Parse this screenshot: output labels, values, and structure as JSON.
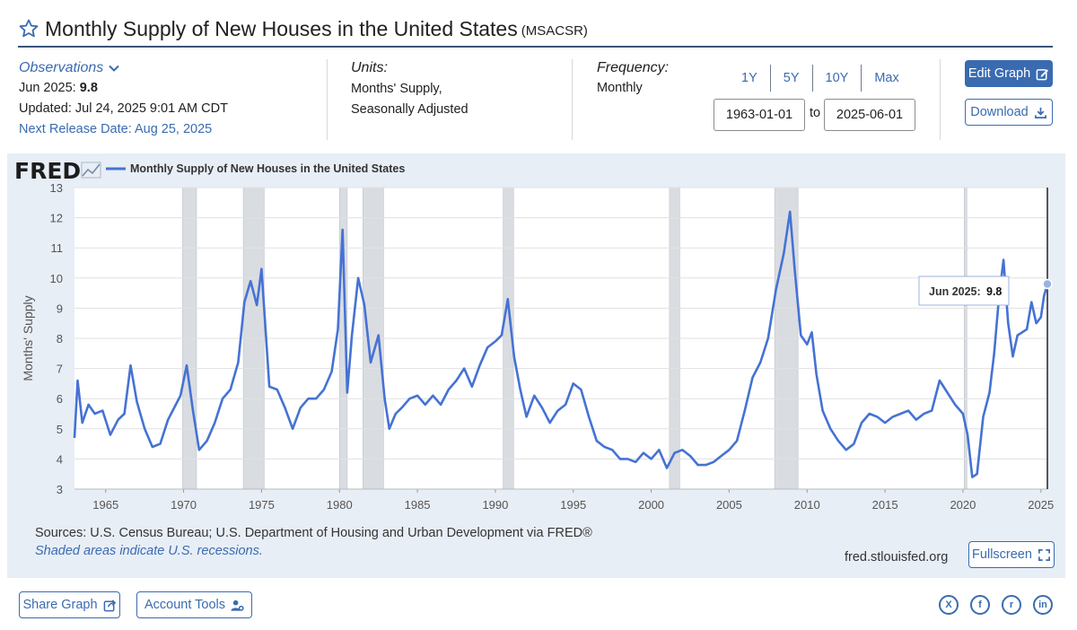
{
  "header": {
    "title": "Monthly Supply of New Houses in the United States",
    "series_id": "(MSACSR)"
  },
  "observations": {
    "link_label": "Observations",
    "date_label": "Jun 2025:",
    "value": "9.8",
    "updated": "Updated: Jul 24, 2025 9:01 AM CDT",
    "next_release": "Next Release Date: Aug 25, 2025"
  },
  "units": {
    "heading": "Units:",
    "line1": "Months' Supply,",
    "line2": "Seasonally Adjusted"
  },
  "frequency": {
    "heading": "Frequency:",
    "value": "Monthly"
  },
  "range": {
    "tabs": [
      "1Y",
      "5Y",
      "10Y",
      "Max"
    ],
    "start": "1963-01-01",
    "to_label": "to",
    "end": "2025-06-01"
  },
  "buttons": {
    "edit_graph": "Edit Graph",
    "download": "Download",
    "fullscreen": "Fullscreen",
    "share_graph": "Share Graph",
    "account_tools": "Account Tools"
  },
  "graph_footer": {
    "sources": "Sources: U.S. Census Bureau; U.S. Department of Housing and Urban Development via FRED®",
    "shaded_note": "Shaded areas indicate U.S. recessions.",
    "url": "fred.stlouisfed.org"
  },
  "social": [
    "X",
    "f",
    "r",
    "in"
  ],
  "colors": {
    "accent": "#3a6bb0",
    "line": "#4572d4",
    "panel_bg": "#e8eef6",
    "recession": "#d9dce1"
  },
  "chart_data": {
    "type": "line",
    "logo": "FRED",
    "legend": "Monthly Supply of New Houses in the United States",
    "ylabel": "Months' Supply",
    "xlabel": "",
    "ylim": [
      3,
      13
    ],
    "xlim": [
      1963.0,
      2025.4167
    ],
    "y_ticks": [
      "3",
      "4",
      "5",
      "6",
      "7",
      "8",
      "9",
      "10",
      "11",
      "12",
      "13"
    ],
    "x_ticks": [
      "1965",
      "1970",
      "1975",
      "1980",
      "1985",
      "1990",
      "1995",
      "2000",
      "2005",
      "2010",
      "2015",
      "2020",
      "2025"
    ],
    "grid": true,
    "tooltip": {
      "label": "Jun 2025:",
      "value": "9.8"
    },
    "recessions": [
      [
        1969.92,
        1970.83
      ],
      [
        1973.83,
        1975.17
      ],
      [
        1980.0,
        1980.5
      ],
      [
        1981.5,
        1982.83
      ],
      [
        1990.5,
        1991.17
      ],
      [
        2001.17,
        2001.83
      ],
      [
        2007.92,
        2009.42
      ],
      [
        2020.08,
        2020.25
      ]
    ],
    "series": [
      {
        "name": "Monthly Supply of New Houses in the United States",
        "x": [
          1963.0,
          1963.2,
          1963.5,
          1963.9,
          1964.3,
          1964.8,
          1965.3,
          1965.8,
          1966.2,
          1966.6,
          1967.0,
          1967.5,
          1968.0,
          1968.5,
          1969.0,
          1969.5,
          1969.8,
          1970.2,
          1970.6,
          1971.0,
          1971.5,
          1972.0,
          1972.5,
          1973.0,
          1973.5,
          1973.9,
          1974.3,
          1974.7,
          1975.0,
          1975.5,
          1976.0,
          1976.5,
          1977.0,
          1977.5,
          1978.0,
          1978.5,
          1979.0,
          1979.5,
          1979.9,
          1980.2,
          1980.5,
          1980.8,
          1981.2,
          1981.6,
          1982.0,
          1982.5,
          1982.9,
          1983.2,
          1983.6,
          1984.0,
          1984.5,
          1985.0,
          1985.5,
          1986.0,
          1986.5,
          1987.0,
          1987.5,
          1988.0,
          1988.5,
          1989.0,
          1989.5,
          1990.0,
          1990.4,
          1990.8,
          1991.2,
          1991.6,
          1992.0,
          1992.5,
          1993.0,
          1993.5,
          1994.0,
          1994.5,
          1995.0,
          1995.5,
          1996.0,
          1996.5,
          1997.0,
          1997.5,
          1998.0,
          1998.5,
          1999.0,
          1999.5,
          2000.0,
          2000.5,
          2001.0,
          2001.5,
          2002.0,
          2002.5,
          2003.0,
          2003.5,
          2004.0,
          2004.5,
          2005.0,
          2005.5,
          2006.0,
          2006.5,
          2007.0,
          2007.5,
          2008.0,
          2008.5,
          2008.9,
          2009.2,
          2009.6,
          2010.0,
          2010.3,
          2010.6,
          2011.0,
          2011.5,
          2012.0,
          2012.5,
          2013.0,
          2013.5,
          2014.0,
          2014.5,
          2015.0,
          2015.5,
          2016.0,
          2016.5,
          2017.0,
          2017.5,
          2018.0,
          2018.5,
          2019.0,
          2019.5,
          2020.0,
          2020.3,
          2020.6,
          2020.9,
          2021.3,
          2021.7,
          2022.0,
          2022.3,
          2022.6,
          2022.9,
          2023.2,
          2023.5,
          2023.8,
          2024.1,
          2024.4,
          2024.7,
          2025.0,
          2025.2,
          2025.4167
        ],
        "y": [
          4.7,
          6.6,
          5.2,
          5.8,
          5.5,
          5.6,
          4.8,
          5.3,
          5.5,
          7.1,
          5.9,
          5.0,
          4.4,
          4.5,
          5.3,
          5.8,
          6.1,
          7.1,
          5.6,
          4.3,
          4.6,
          5.2,
          6.0,
          6.3,
          7.2,
          9.2,
          9.9,
          9.1,
          10.3,
          6.4,
          6.3,
          5.7,
          5.0,
          5.7,
          6.0,
          6.0,
          6.3,
          6.9,
          8.3,
          11.6,
          6.2,
          8.1,
          10.0,
          9.1,
          7.2,
          8.1,
          6.0,
          5.0,
          5.5,
          5.7,
          6.0,
          6.1,
          5.8,
          6.1,
          5.8,
          6.3,
          6.6,
          7.0,
          6.4,
          7.1,
          7.7,
          7.9,
          8.1,
          9.3,
          7.4,
          6.3,
          5.4,
          6.1,
          5.7,
          5.2,
          5.6,
          5.8,
          6.5,
          6.3,
          5.4,
          4.6,
          4.4,
          4.3,
          4.0,
          4.0,
          3.9,
          4.2,
          4.0,
          4.3,
          3.7,
          4.2,
          4.3,
          4.1,
          3.8,
          3.8,
          3.9,
          4.1,
          4.3,
          4.6,
          5.6,
          6.7,
          7.2,
          8.0,
          9.6,
          10.8,
          12.2,
          10.3,
          8.1,
          7.8,
          8.2,
          6.8,
          5.6,
          5.0,
          4.6,
          4.3,
          4.5,
          5.2,
          5.5,
          5.4,
          5.2,
          5.4,
          5.5,
          5.6,
          5.3,
          5.5,
          5.6,
          6.6,
          6.2,
          5.8,
          5.5,
          4.8,
          3.4,
          3.5,
          5.4,
          6.2,
          7.5,
          9.3,
          10.6,
          8.5,
          7.4,
          8.1,
          8.2,
          8.3,
          9.2,
          8.5,
          8.7,
          9.4,
          9.8
        ]
      }
    ]
  }
}
